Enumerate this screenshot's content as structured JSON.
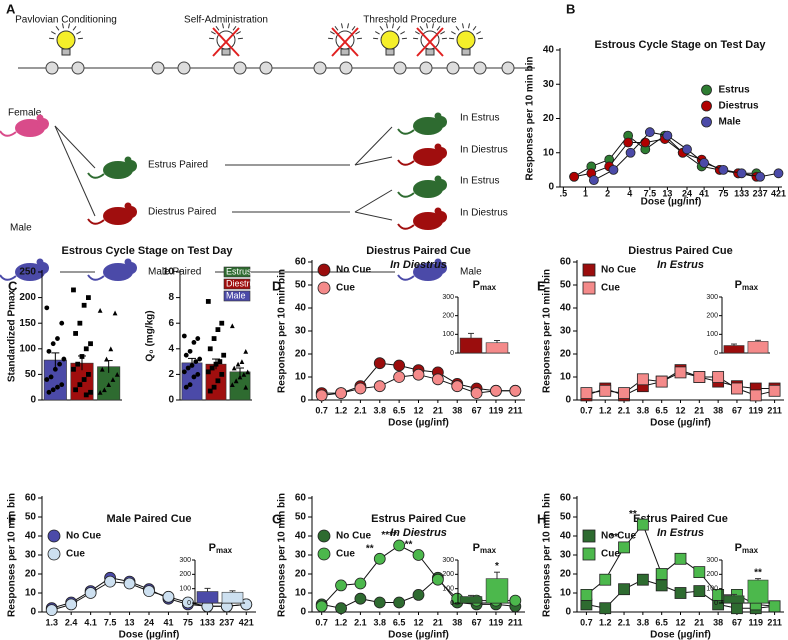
{
  "diagram": {
    "panel": "A",
    "phases": [
      "Pavlovian Conditioning",
      "Self-Administration",
      "Threshold Procedure"
    ],
    "subjects": [
      "Female",
      "Male"
    ],
    "conditions": [
      "Estrus Paired",
      "Diestrus Paired",
      "Male Paired"
    ],
    "tests": [
      "In Estrus",
      "In Diestrus",
      "In Estrus",
      "In Diestrus",
      "Male"
    ]
  },
  "chart_data": [
    {
      "type": "line",
      "panel": "B",
      "title": "Estrous Cycle Stage on Test Day",
      "xlabel": "Dose (µg/inf)",
      "ylabel": "Responses per 10 min bin",
      "xscale": "log",
      "xlim": [
        0.45,
        470
      ],
      "xticks": [
        {
          "value": 0.5,
          "label": ".5"
        },
        1,
        2,
        4,
        7.5,
        13,
        24,
        41,
        75,
        133,
        237,
        421
      ],
      "ylim": [
        0,
        40
      ],
      "yticks": [
        0,
        10,
        20,
        30,
        40
      ],
      "marker": "circle",
      "legend": "right",
      "series": [
        {
          "name": "Estrus",
          "color": "#2e7d32",
          "x": [
            0.7,
            1.2,
            2.1,
            3.8,
            6.5,
            12,
            21,
            38,
            67,
            119,
            211
          ],
          "values": [
            3,
            6,
            8,
            15,
            11,
            15,
            10,
            6,
            5,
            4,
            4
          ]
        },
        {
          "name": "Diestrus",
          "color": "#b00000",
          "x": [
            0.7,
            1.2,
            2.1,
            3.8,
            6.5,
            12,
            21,
            38,
            67,
            119,
            211
          ],
          "values": [
            3,
            4,
            6,
            13,
            13,
            14,
            10,
            8,
            5,
            4,
            3
          ]
        },
        {
          "name": "Male",
          "color": "#4b4aa8",
          "x": [
            1.3,
            2.4,
            4.1,
            7.5,
            13,
            24,
            41,
            75,
            133,
            237,
            421
          ],
          "values": [
            2,
            5,
            10,
            16,
            15,
            11,
            7,
            5,
            4,
            3,
            4
          ]
        }
      ]
    },
    {
      "type": "bar",
      "panel": "C",
      "title": "Estrous Cycle Stage on Test Day",
      "ylabel": "Standardized Pmax",
      "ylim": [
        0,
        250
      ],
      "yticks": [
        0,
        50,
        100,
        150,
        200,
        250
      ],
      "series": [
        {
          "color": "#2e6b30",
          "marker": "triangle",
          "values": [
            65
          ],
          "errors": [
            12
          ],
          "points": [
            175,
            170,
            100,
            80,
            60,
            50,
            40,
            30,
            20,
            15
          ]
        },
        {
          "color": "#a00e0e",
          "marker": "square",
          "values": [
            72
          ],
          "errors": [
            14
          ],
          "points": [
            215,
            200,
            185,
            150,
            130,
            110,
            100,
            85,
            70,
            60,
            50,
            40,
            30,
            20,
            15,
            10
          ]
        },
        {
          "color": "#4b4aa8",
          "marker": "circle",
          "values": [
            78
          ],
          "errors": [
            14
          ],
          "points": [
            180,
            150,
            120,
            110,
            95,
            80,
            70,
            60,
            45,
            40,
            30,
            25,
            20,
            15
          ]
        }
      ]
    },
    {
      "type": "bar",
      "ylabel": "Q₀ (mg/kg)",
      "ylim": [
        0,
        10
      ],
      "yticks": [
        0,
        2,
        4,
        6,
        8,
        10
      ],
      "legend": "upper-right",
      "series": [
        {
          "name": "Estrus",
          "color": "#2e6b30",
          "marker": "triangle",
          "values": [
            2.2
          ],
          "errors": [
            0.3
          ],
          "points": [
            5.8,
            3.8,
            3,
            2.8,
            2.5,
            2.2,
            2,
            1.8,
            1.5,
            1.2,
            1
          ]
        },
        {
          "name": "Diestrus",
          "color": "#a00e0e",
          "marker": "square",
          "values": [
            2.8
          ],
          "errors": [
            0.4
          ],
          "points": [
            7.7,
            6,
            5.5,
            4.8,
            4,
            3.5,
            3,
            2.8,
            2.5,
            2.2,
            2,
            1.5,
            1,
            0.7
          ]
        },
        {
          "name": "Male",
          "color": "#4b4aa8",
          "marker": "circle",
          "values": [
            2.9
          ],
          "errors": [
            0.35
          ],
          "points": [
            5,
            4.8,
            4.5,
            3.8,
            3.5,
            3.2,
            3,
            2.7,
            2.5,
            2.2,
            2,
            1.8,
            1.2,
            1
          ]
        }
      ]
    },
    {
      "type": "line",
      "panel": "D",
      "title": "Diestrus Paired Cue",
      "subtitle": "In Diestrus",
      "xlabel": "Dose (µg/inf)",
      "ylabel": "Responses per 10 min bin",
      "categories": [
        "0.7",
        "1.2",
        "2.1",
        "3.8",
        "6.5",
        "12",
        "21",
        "38",
        "67",
        "119",
        "211"
      ],
      "ylim": [
        0,
        60
      ],
      "yticks": [
        0,
        10,
        20,
        30,
        40,
        50,
        60
      ],
      "marker": "circle",
      "legend": "upper-left",
      "series": [
        {
          "name": "No Cue",
          "color": "#9b0d0d",
          "values": [
            3,
            3,
            6,
            16,
            15,
            13,
            12,
            7,
            5,
            4,
            4
          ]
        },
        {
          "name": "Cue",
          "color": "#f48a8a",
          "values": [
            2,
            3,
            5,
            6,
            10,
            11,
            9,
            6,
            3,
            4,
            4
          ]
        }
      ],
      "inset": {
        "type": "bar",
        "title": "P",
        "title_subscript": "max",
        "ylim": [
          0,
          300
        ],
        "yticks": [
          0,
          100,
          200,
          300
        ],
        "values": [
          80,
          55
        ],
        "errors": [
          25,
          12
        ]
      }
    },
    {
      "type": "line",
      "panel": "E",
      "title": "Diestrus Paired Cue",
      "subtitle": "In Estrus",
      "xlabel": "Dose (µg/inf)",
      "ylabel": "Responses per 10 min bin",
      "categories": [
        "0.7",
        "1.2",
        "2.1",
        "3.8",
        "6.5",
        "12",
        "21",
        "38",
        "67",
        "119",
        "211"
      ],
      "ylim": [
        0,
        60
      ],
      "yticks": [
        0,
        10,
        20,
        30,
        40,
        50,
        60
      ],
      "marker": "square",
      "legend": "upper-left",
      "series": [
        {
          "name": "No Cue",
          "color": "#9b0d0d",
          "values": [
            2,
            5,
            2,
            6,
            8,
            13,
            10,
            8,
            6,
            5,
            5
          ]
        },
        {
          "name": "Cue",
          "color": "#f48a8a",
          "values": [
            3,
            4,
            3,
            9,
            8,
            12,
            10,
            10,
            5,
            2,
            4
          ]
        }
      ],
      "inset": {
        "type": "bar",
        "title": "P",
        "title_subscript": "max",
        "ylim": [
          0,
          300
        ],
        "yticks": [
          0,
          100,
          200,
          300
        ],
        "values": [
          40,
          62
        ],
        "errors": [
          8,
          6
        ]
      }
    },
    {
      "type": "line",
      "panel": "F",
      "title": "Male Paired Cue",
      "xlabel": "Dose (µg/inf)",
      "ylabel": "Responses per 10 min bin",
      "categories": [
        "1.3",
        "2.4",
        "4.1",
        "7.5",
        "13",
        "24",
        "41",
        "75",
        "133",
        "237",
        "421"
      ],
      "ylim": [
        0,
        60
      ],
      "yticks": [
        0,
        10,
        20,
        30,
        40,
        50,
        60
      ],
      "marker": "circle",
      "legend": "upper-left",
      "series": [
        {
          "name": "No Cue",
          "color": "#4b4aa8",
          "values": [
            2,
            5,
            11,
            18,
            16,
            12,
            7,
            4,
            3,
            3,
            4
          ]
        },
        {
          "name": "Cue",
          "color": "#cde0f0",
          "values": [
            1,
            4,
            10,
            16,
            15,
            11,
            8,
            5,
            3,
            3,
            4
          ]
        }
      ],
      "inset": {
        "type": "bar",
        "title": "P",
        "title_subscript": "max",
        "ylim": [
          0,
          300
        ],
        "yticks": [
          0,
          100,
          200,
          300
        ],
        "values": [
          80,
          75
        ],
        "errors": [
          22,
          10
        ]
      }
    },
    {
      "type": "line",
      "panel": "G",
      "title": "Estrus Paired Cue",
      "subtitle": "In Diestrus",
      "xlabel": "Dose (µg/inf)",
      "ylabel": "Responses per 10 min bin",
      "categories": [
        "0.7",
        "1.2",
        "2.1",
        "3.8",
        "6.5",
        "12",
        "21",
        "38",
        "67",
        "119",
        "211"
      ],
      "ylim": [
        0,
        60
      ],
      "yticks": [
        0,
        10,
        20,
        30,
        40,
        50,
        60
      ],
      "marker": "circle",
      "legend": "upper-left",
      "series": [
        {
          "name": "No Cue",
          "color": "#2e6b30",
          "values": [
            4,
            2,
            7,
            5,
            5,
            9,
            18,
            5,
            4,
            4,
            3
          ]
        },
        {
          "name": "Cue",
          "color": "#4cb84c",
          "values": [
            3,
            14,
            15,
            28,
            35,
            30,
            17,
            7,
            6,
            6,
            6
          ]
        }
      ],
      "annotations": [
        {
          "text": "**",
          "category": "3.8"
        },
        {
          "text": "****",
          "category": "6.5"
        },
        {
          "text": "**",
          "category": "12"
        }
      ],
      "inset": {
        "type": "bar",
        "title": "P",
        "title_subscript": "max",
        "ylim": [
          0,
          300
        ],
        "yticks": [
          0,
          100,
          200,
          300
        ],
        "values": [
          45,
          170
        ],
        "errors": [
          8,
          45
        ],
        "annotation": "*"
      }
    },
    {
      "type": "line",
      "panel": "H",
      "title": "Estrus Paired Cue",
      "subtitle": "In Estrus",
      "xlabel": "Dose (µg/inf)",
      "ylabel": "Responses per 10 min bin",
      "categories": [
        "0.7",
        "1.2",
        "2.1",
        "3.8",
        "6.5",
        "12",
        "21",
        "38",
        "67",
        "119",
        "211"
      ],
      "ylim": [
        0,
        60
      ],
      "yticks": [
        0,
        10,
        20,
        30,
        40,
        50,
        60
      ],
      "marker": "square",
      "legend": "upper-left",
      "series": [
        {
          "name": "No Cue",
          "color": "#2e6b30",
          "values": [
            4,
            2,
            12,
            17,
            14,
            10,
            11,
            4,
            2,
            2,
            3
          ]
        },
        {
          "name": "Cue",
          "color": "#4cb84c",
          "values": [
            9,
            17,
            34,
            46,
            20,
            28,
            21,
            9,
            9,
            4,
            3
          ]
        }
      ],
      "annotations": [
        {
          "text": "**",
          "category": "2.1"
        },
        {
          "text": "**",
          "category": "3.8"
        }
      ],
      "inset": {
        "type": "bar",
        "title": "P",
        "title_subscript": "max",
        "ylim": [
          0,
          300
        ],
        "yticks": [
          0,
          100,
          200,
          300
        ],
        "values": [
          50,
          160
        ],
        "errors": [
          10,
          10
        ],
        "annotation": "**"
      }
    }
  ]
}
